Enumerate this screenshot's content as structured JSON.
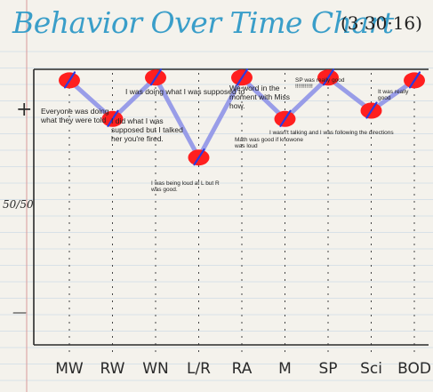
{
  "title": "Behavior Over Time Chart",
  "date": "(3·30·16)",
  "colors": {
    "paper": "#f4f2ec",
    "rule": "#8fb5d9",
    "margin_rule": "#d99a9a",
    "title": "#3a9ec9",
    "axis": "#2a2a2a",
    "dot": "#ff1f1f",
    "trend": "#8f93e8",
    "tick_mark": "#2b3be0"
  },
  "chart_data": {
    "type": "line",
    "title": "Behavior Over Time Chart",
    "subtitle": "(3·30·16)",
    "xlabel": "",
    "ylabel": "",
    "categories": [
      "MW",
      "RW",
      "WN",
      "L/R",
      "RA",
      "M",
      "SP",
      "Sci",
      "BOD"
    ],
    "y_tick_labels": [
      "+",
      "50/50",
      "—"
    ],
    "ylim": [
      0,
      10
    ],
    "grid": "dotted vertical lines at each category",
    "series": [
      {
        "values": [
          9.6,
          8.2,
          9.7,
          6.8,
          9.7,
          8.2,
          9.7,
          8.5,
          9.6
        ]
      }
    ],
    "annotations": [
      "Everyone was  doing what they were told",
      "I was doing what I was supposed to",
      "I did what I was supposed but I talked her you're fired.",
      "I was being loud at L but R was good.",
      "We word in the moment with Miss how.",
      "Math was good if knowone was loud",
      "I wasn't talking and I was following the directions",
      "SP was really good !!!!!!!!!!!",
      "It was really good"
    ]
  }
}
